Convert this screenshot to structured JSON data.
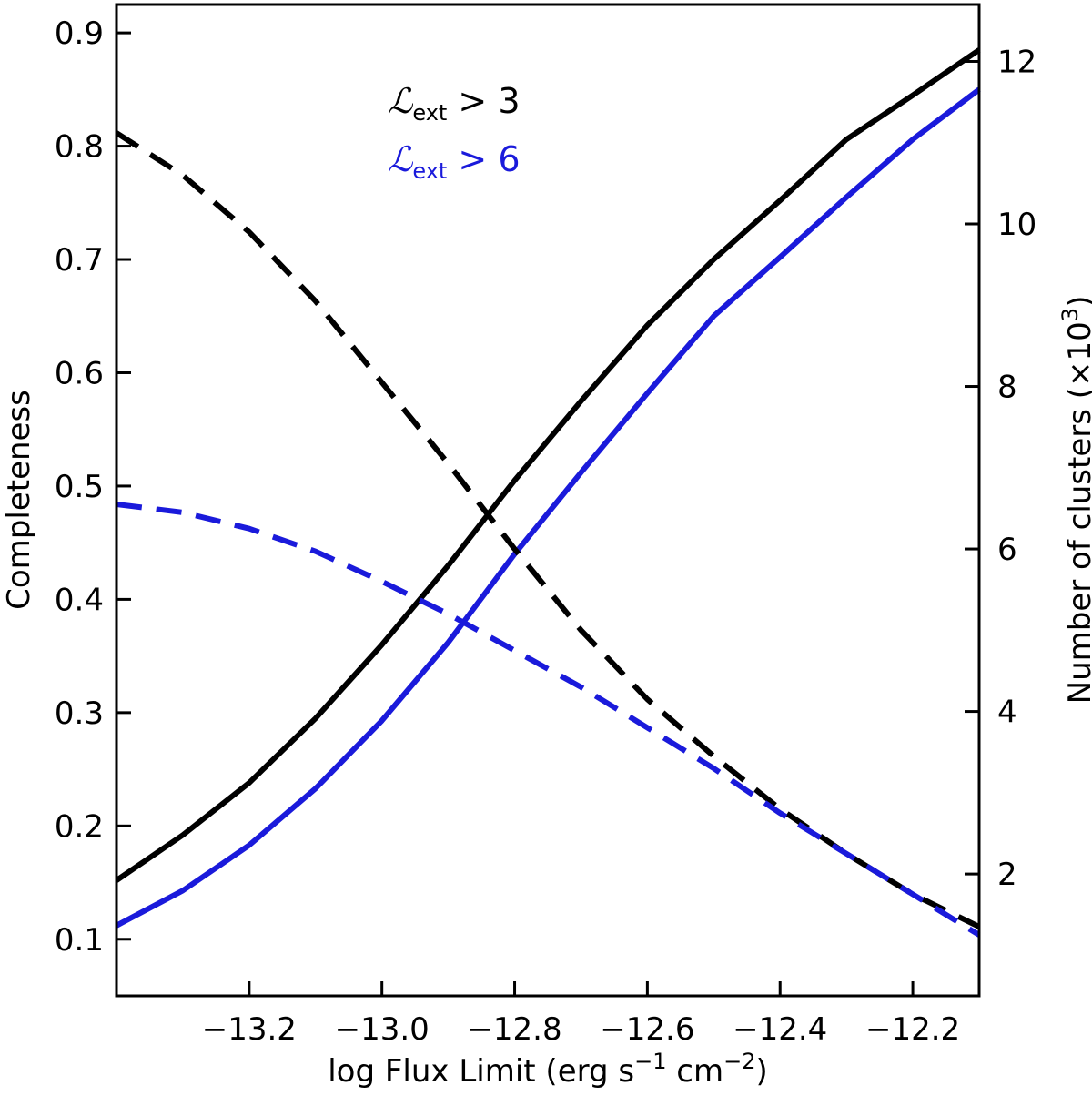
{
  "chart_data": {
    "type": "line",
    "x_axis": {
      "label_main": "log Flux Limit (erg s",
      "label_sup1": "−1",
      "label_mid": " cm",
      "label_sup2": "−2",
      "label_end": ")",
      "range": [
        -13.4,
        -12.1
      ],
      "ticks": [
        -13.2,
        -13.0,
        -12.8,
        -12.6,
        -12.4,
        -12.2
      ],
      "tick_labels": [
        "−13.2",
        "−13.0",
        "−12.8",
        "−12.6",
        "−12.4",
        "−12.2"
      ]
    },
    "y_left": {
      "label": "Completeness",
      "range": [
        0.05,
        0.925
      ],
      "ticks": [
        0.1,
        0.2,
        0.3,
        0.4,
        0.5,
        0.6,
        0.7,
        0.8,
        0.9
      ],
      "tick_labels": [
        "0.1",
        "0.2",
        "0.3",
        "0.4",
        "0.5",
        "0.6",
        "0.7",
        "0.8",
        "0.9"
      ]
    },
    "y_right": {
      "label_main": "Number of clusters (×10",
      "label_sup": "3",
      "label_end": ")",
      "range": [
        0.5,
        12.7
      ],
      "ticks": [
        2,
        4,
        6,
        8,
        10,
        12
      ],
      "tick_labels": [
        "2",
        "4",
        "6",
        "8",
        "10",
        "12"
      ]
    },
    "legend": {
      "placement": "top-left",
      "entries": [
        {
          "symbol": "ℒ",
          "sub": "ext",
          "rel": " > 3",
          "color": "#000000"
        },
        {
          "symbol": "ℒ",
          "sub": "ext",
          "rel": " > 6",
          "color": "#1a1adb"
        }
      ]
    },
    "x": [
      -13.4,
      -13.3,
      -13.2,
      -13.1,
      -13.0,
      -12.9,
      -12.8,
      -12.7,
      -12.6,
      -12.5,
      -12.4,
      -12.3,
      -12.2,
      -12.1
    ],
    "series": [
      {
        "axis": "left",
        "style": "solid",
        "color": "#000000",
        "values": [
          0.152,
          0.192,
          0.238,
          0.295,
          0.36,
          0.43,
          0.505,
          0.575,
          0.642,
          0.7,
          0.752,
          0.806,
          0.845,
          0.885
        ]
      },
      {
        "axis": "left",
        "style": "solid",
        "color": "#1a1adb",
        "values": [
          0.112,
          0.143,
          0.183,
          0.233,
          0.293,
          0.362,
          0.44,
          0.512,
          0.582,
          0.65,
          0.702,
          0.755,
          0.806,
          0.85
        ]
      },
      {
        "axis": "right",
        "style": "dashed",
        "color": "#000000",
        "values": [
          11.12,
          10.6,
          9.9,
          9.05,
          8.05,
          7.05,
          6.0,
          5.0,
          4.15,
          3.45,
          2.8,
          2.25,
          1.75,
          1.35
        ]
      },
      {
        "axis": "right",
        "style": "dashed",
        "color": "#1a1adb",
        "values": [
          6.55,
          6.45,
          6.25,
          5.97,
          5.6,
          5.2,
          4.75,
          4.3,
          3.8,
          3.3,
          2.75,
          2.25,
          1.75,
          1.25
        ]
      }
    ]
  }
}
